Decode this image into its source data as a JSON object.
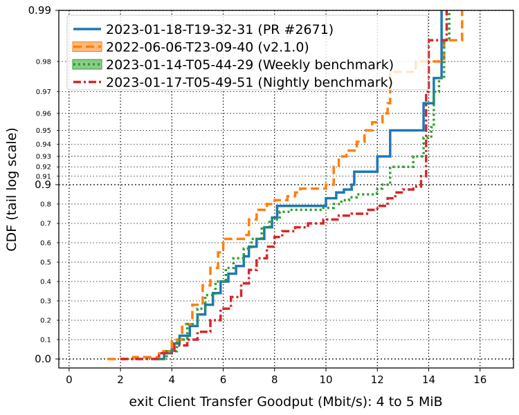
{
  "chart_data": {
    "type": "line",
    "xlabel": "exit Client Transfer Goodput (Mbit/s): 4 to 5 MiB",
    "ylabel": "CDF (tail log scale)",
    "xlim": [
      -0.4,
      17.3
    ],
    "x_ticks": [
      "0",
      "2",
      "4",
      "6",
      "8",
      "10",
      "12",
      "14",
      "16"
    ],
    "y_ticks_major": [
      "0.0",
      "0.9",
      "0.99"
    ],
    "y_ticks_minor": [
      "0.1",
      "0.2",
      "0.3",
      "0.4",
      "0.5",
      "0.6",
      "0.7",
      "0.8",
      "0.91",
      "0.92",
      "0.93",
      "0.94",
      "0.95",
      "0.96",
      "0.97",
      "0.98"
    ],
    "y_scale": "linear below 0.9, logit tail above 0.9",
    "grid": "dotted, at major and minor ticks",
    "legend_position": "top-left",
    "series": [
      {
        "name": "2023-01-18-T19-32-31 (PR #2671)",
        "color": "#1f77b4",
        "style": "solid",
        "points": [
          [
            3.4,
            0.0
          ],
          [
            3.7,
            0.03
          ],
          [
            4.0,
            0.08
          ],
          [
            4.3,
            0.12
          ],
          [
            4.7,
            0.17
          ],
          [
            5.0,
            0.23
          ],
          [
            5.3,
            0.28
          ],
          [
            5.6,
            0.34
          ],
          [
            5.9,
            0.4
          ],
          [
            6.2,
            0.44
          ],
          [
            6.5,
            0.48
          ],
          [
            6.8,
            0.53
          ],
          [
            7.0,
            0.58
          ],
          [
            7.3,
            0.62
          ],
          [
            7.6,
            0.68
          ],
          [
            7.9,
            0.73
          ],
          [
            8.1,
            0.79
          ],
          [
            9.8,
            0.79
          ],
          [
            10.0,
            0.83
          ],
          [
            10.4,
            0.86
          ],
          [
            10.7,
            0.875
          ],
          [
            11.0,
            0.9
          ],
          [
            11.1,
            0.915
          ],
          [
            11.9,
            0.915
          ],
          [
            12.0,
            0.93
          ],
          [
            12.5,
            0.93
          ],
          [
            12.5,
            0.95
          ],
          [
            13.7,
            0.95
          ],
          [
            13.8,
            0.965
          ],
          [
            14.1,
            0.965
          ],
          [
            14.2,
            0.975
          ],
          [
            14.4,
            0.975
          ],
          [
            14.5,
            0.99
          ]
        ]
      },
      {
        "name": "2022-06-06-T23-09-40 (v2.1.0)",
        "color": "#ff7f0e",
        "style": "dashed",
        "points": [
          [
            1.5,
            0.0
          ],
          [
            2.5,
            0.01
          ],
          [
            3.5,
            0.04
          ],
          [
            4.0,
            0.1
          ],
          [
            4.4,
            0.18
          ],
          [
            4.8,
            0.28
          ],
          [
            5.2,
            0.38
          ],
          [
            5.5,
            0.47
          ],
          [
            5.8,
            0.55
          ],
          [
            6.0,
            0.62
          ],
          [
            6.8,
            0.64
          ],
          [
            7.0,
            0.72
          ],
          [
            7.3,
            0.77
          ],
          [
            7.7,
            0.8
          ],
          [
            8.0,
            0.82
          ],
          [
            8.5,
            0.84
          ],
          [
            8.8,
            0.86
          ],
          [
            9.0,
            0.88
          ],
          [
            9.8,
            0.88
          ],
          [
            10.0,
            0.9
          ],
          [
            10.3,
            0.92
          ],
          [
            10.5,
            0.93
          ],
          [
            10.8,
            0.935
          ],
          [
            11.2,
            0.942
          ],
          [
            11.5,
            0.95
          ],
          [
            11.8,
            0.955
          ],
          [
            12.2,
            0.96
          ],
          [
            12.4,
            0.965
          ],
          [
            12.5,
            0.977
          ],
          [
            13.4,
            0.977
          ],
          [
            13.5,
            0.98
          ],
          [
            14.5,
            0.98
          ],
          [
            14.6,
            0.985
          ],
          [
            15.0,
            0.985
          ],
          [
            15.3,
            0.99
          ]
        ]
      },
      {
        "name": "2023-01-14-T05-44-29 (Weekly benchmark)",
        "color": "#2ca02c",
        "style": "dotted",
        "points": [
          [
            3.3,
            0.0
          ],
          [
            3.8,
            0.04
          ],
          [
            4.2,
            0.1
          ],
          [
            4.6,
            0.18
          ],
          [
            5.0,
            0.26
          ],
          [
            5.3,
            0.33
          ],
          [
            5.7,
            0.4
          ],
          [
            6.1,
            0.47
          ],
          [
            6.4,
            0.52
          ],
          [
            6.8,
            0.57
          ],
          [
            7.1,
            0.62
          ],
          [
            7.5,
            0.68
          ],
          [
            7.8,
            0.72
          ],
          [
            8.2,
            0.76
          ],
          [
            8.6,
            0.77
          ],
          [
            9.4,
            0.77
          ],
          [
            9.9,
            0.78
          ],
          [
            10.3,
            0.8
          ],
          [
            10.6,
            0.82
          ],
          [
            10.9,
            0.835
          ],
          [
            11.2,
            0.85
          ],
          [
            11.9,
            0.855
          ],
          [
            12.0,
            0.88
          ],
          [
            12.2,
            0.9
          ],
          [
            12.5,
            0.92
          ],
          [
            13.4,
            0.93
          ],
          [
            13.7,
            0.93
          ],
          [
            13.8,
            0.945
          ],
          [
            14.1,
            0.952
          ],
          [
            14.2,
            0.97
          ],
          [
            14.4,
            0.975
          ],
          [
            14.6,
            0.985
          ],
          [
            14.8,
            0.99
          ]
        ]
      },
      {
        "name": "2023-01-17-T05-49-51 (Nightly benchmark)",
        "color": "#d62728",
        "style": "dashdot",
        "points": [
          [
            2.0,
            0.0
          ],
          [
            3.5,
            0.03
          ],
          [
            4.1,
            0.07
          ],
          [
            4.6,
            0.1
          ],
          [
            5.0,
            0.14
          ],
          [
            5.5,
            0.2
          ],
          [
            5.9,
            0.26
          ],
          [
            6.3,
            0.32
          ],
          [
            6.7,
            0.39
          ],
          [
            7.0,
            0.46
          ],
          [
            7.3,
            0.52
          ],
          [
            7.7,
            0.58
          ],
          [
            8.0,
            0.63
          ],
          [
            8.3,
            0.66
          ],
          [
            8.8,
            0.68
          ],
          [
            9.3,
            0.7
          ],
          [
            9.9,
            0.72
          ],
          [
            10.5,
            0.74
          ],
          [
            11.0,
            0.75
          ],
          [
            11.6,
            0.77
          ],
          [
            12.0,
            0.79
          ],
          [
            12.4,
            0.83
          ],
          [
            12.7,
            0.86
          ],
          [
            13.0,
            0.875
          ],
          [
            13.4,
            0.89
          ],
          [
            13.7,
            0.91
          ],
          [
            13.9,
            0.97
          ],
          [
            14.0,
            0.985
          ],
          [
            14.5,
            0.985
          ],
          [
            14.7,
            0.99
          ]
        ]
      }
    ]
  }
}
